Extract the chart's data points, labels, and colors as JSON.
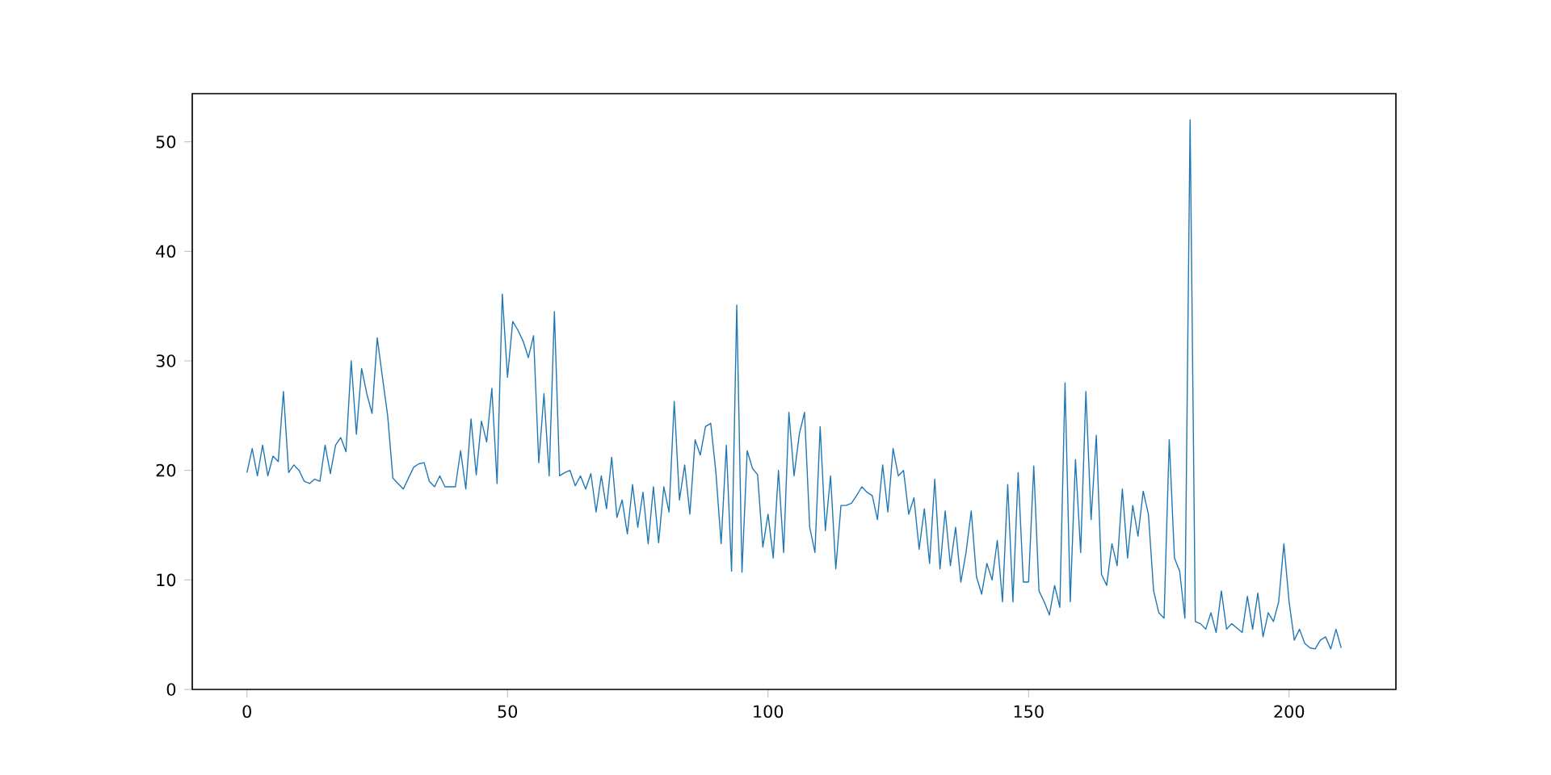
{
  "chart_data": {
    "type": "line",
    "color": "#1f77b4",
    "x": [
      0,
      1,
      2,
      3,
      4,
      5,
      6,
      7,
      8,
      9,
      10,
      11,
      12,
      13,
      14,
      15,
      16,
      17,
      18,
      19,
      20,
      21,
      22,
      23,
      24,
      25,
      26,
      27,
      28,
      29,
      30,
      31,
      32,
      33,
      34,
      35,
      36,
      37,
      38,
      39,
      40,
      41,
      42,
      43,
      44,
      45,
      46,
      47,
      48,
      49,
      50,
      51,
      52,
      53,
      54,
      55,
      56,
      57,
      58,
      59,
      60,
      61,
      62,
      63,
      64,
      65,
      66,
      67,
      68,
      69,
      70,
      71,
      72,
      73,
      74,
      75,
      76,
      77,
      78,
      79,
      80,
      81,
      82,
      83,
      84,
      85,
      86,
      87,
      88,
      89,
      90,
      91,
      92,
      93,
      94,
      95,
      96,
      97,
      98,
      99,
      100,
      101,
      102,
      103,
      104,
      105,
      106,
      107,
      108,
      109,
      110,
      111,
      112,
      113,
      114,
      115,
      116,
      117,
      118,
      119,
      120,
      121,
      122,
      123,
      124,
      125,
      126,
      127,
      128,
      129,
      130,
      131,
      132,
      133,
      134,
      135,
      136,
      137,
      138,
      139,
      140,
      141,
      142,
      143,
      144,
      145,
      146,
      147,
      148,
      149,
      150,
      151,
      152,
      153,
      154,
      155,
      156,
      157,
      158,
      159,
      160,
      161,
      162,
      163,
      164,
      165,
      166,
      167,
      168,
      169,
      170,
      171,
      172,
      173,
      174,
      175,
      176,
      177,
      178,
      179,
      180,
      181,
      182,
      183,
      184,
      185,
      186,
      187,
      188,
      189,
      190,
      191,
      192,
      193,
      194,
      195,
      196,
      197,
      198,
      199,
      200,
      201,
      202,
      203,
      204,
      205,
      206,
      207,
      208,
      209,
      210
    ],
    "values": [
      19.8,
      22,
      19.5,
      22.3,
      19.5,
      21.3,
      20.8,
      27.2,
      19.8,
      20.5,
      20,
      19,
      18.8,
      19.2,
      19,
      22.3,
      19.7,
      22.3,
      23,
      21.7,
      30,
      23.3,
      29.3,
      27,
      25.2,
      32.1,
      28.5,
      25,
      19.3,
      18.8,
      18.3,
      19.3,
      20.3,
      20.6,
      20.7,
      19,
      18.5,
      19.5,
      18.5,
      18.5,
      18.5,
      21.8,
      18.3,
      24.7,
      19.6,
      24.5,
      22.6,
      27.5,
      18.8,
      36.1,
      28.5,
      33.6,
      32.8,
      31.8,
      30.3,
      32.3,
      20.7,
      27,
      19.5,
      34.5,
      19.5,
      19.8,
      20,
      18.6,
      19.5,
      18.3,
      19.7,
      16.2,
      19.5,
      16.5,
      21.2,
      15.7,
      17.3,
      14.2,
      18.7,
      14.8,
      18,
      13.3,
      18.5,
      13.4,
      18.5,
      16.2,
      26.3,
      17.3,
      20.5,
      16,
      22.8,
      21.4,
      24,
      24.3,
      19.8,
      13.3,
      22.3,
      10.8,
      35.1,
      10.7,
      21.8,
      20.2,
      19.6,
      13,
      16,
      12,
      20,
      12.5,
      25.3,
      19.5,
      23.3,
      25.3,
      14.8,
      12.5,
      24,
      14.5,
      19.5,
      11,
      16.8,
      16.8,
      17,
      17.7,
      18.5,
      18,
      17.7,
      15.5,
      20.5,
      16.2,
      22,
      19.5,
      20,
      16,
      17.5,
      12.8,
      16.5,
      11.5,
      19.2,
      11,
      16.3,
      11.3,
      14.8,
      9.8,
      12.5,
      16.3,
      10.3,
      8.7,
      11.5,
      10,
      13.6,
      8,
      18.7,
      8,
      19.8,
      9.8,
      9.8,
      20.4,
      9,
      8,
      6.8,
      9.5,
      7.5,
      28,
      8,
      21,
      12.5,
      27.2,
      15.5,
      23.2,
      10.5,
      9.5,
      13.3,
      11.3,
      18.3,
      12,
      16.8,
      14,
      18.1,
      16,
      9,
      7,
      6.5,
      22.8,
      12,
      10.8,
      6.5,
      52,
      6.2,
      6,
      5.5,
      7,
      5.2,
      9,
      5.5,
      6,
      5.6,
      5.2,
      8.5,
      5.5,
      8.8,
      4.8,
      7,
      6.2,
      8,
      13.3,
      8,
      4.5,
      5.5,
      4.2,
      3.8,
      3.7,
      4.5,
      4.8,
      3.7,
      5.5,
      3.8
    ],
    "xlim": [
      -10.5,
      220.5
    ],
    "ylim": [
      0,
      54.4
    ],
    "xticks": [
      0,
      50,
      100,
      150,
      200
    ],
    "yticks": [
      0,
      10,
      20,
      30,
      40,
      50
    ]
  }
}
